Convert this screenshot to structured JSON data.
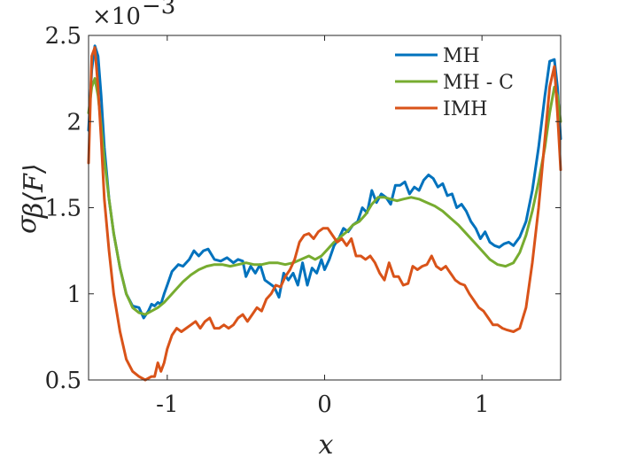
{
  "chart_data": {
    "type": "line",
    "xlabel": "x",
    "ylabel": "σ",
    "ylabel_sub": "β⟨F⟩",
    "y_multiplier_base": "×10",
    "y_multiplier_exp": "−3",
    "xlim": [
      -1.5,
      1.5
    ],
    "ylim": [
      0.5,
      2.5
    ],
    "x_ticks": [
      -1,
      0,
      1
    ],
    "x_tick_labels": [
      "-1",
      "0",
      "1"
    ],
    "y_ticks": [
      0.5,
      1,
      1.5,
      2,
      2.5
    ],
    "y_tick_labels": [
      "0.5",
      "1",
      "1.5",
      "2",
      "2.5"
    ],
    "grid": false,
    "legend_position": "top-right",
    "series": [
      {
        "name": "MH",
        "color": "#0072BD",
        "x": [
          -1.5,
          -1.48,
          -1.46,
          -1.44,
          -1.42,
          -1.4,
          -1.37,
          -1.34,
          -1.3,
          -1.26,
          -1.22,
          -1.18,
          -1.15,
          -1.12,
          -1.1,
          -1.08,
          -1.06,
          -1.04,
          -1.02,
          -1.0,
          -0.97,
          -0.93,
          -0.9,
          -0.86,
          -0.83,
          -0.8,
          -0.77,
          -0.74,
          -0.7,
          -0.66,
          -0.62,
          -0.58,
          -0.55,
          -0.52,
          -0.5,
          -0.47,
          -0.44,
          -0.41,
          -0.38,
          -0.35,
          -0.32,
          -0.29,
          -0.26,
          -0.23,
          -0.2,
          -0.17,
          -0.14,
          -0.11,
          -0.08,
          -0.05,
          -0.02,
          0.0,
          0.03,
          0.06,
          0.09,
          0.12,
          0.15,
          0.18,
          0.21,
          0.24,
          0.27,
          0.3,
          0.33,
          0.36,
          0.39,
          0.42,
          0.45,
          0.48,
          0.51,
          0.54,
          0.57,
          0.6,
          0.63,
          0.66,
          0.69,
          0.72,
          0.75,
          0.78,
          0.81,
          0.84,
          0.87,
          0.9,
          0.93,
          0.96,
          0.99,
          1.02,
          1.05,
          1.08,
          1.11,
          1.14,
          1.17,
          1.2,
          1.24,
          1.28,
          1.32,
          1.36,
          1.4,
          1.43,
          1.46,
          1.48,
          1.5
        ],
        "values": [
          1.95,
          2.3,
          2.44,
          2.38,
          2.15,
          1.85,
          1.55,
          1.35,
          1.15,
          1.0,
          0.93,
          0.92,
          0.86,
          0.9,
          0.94,
          0.93,
          0.95,
          0.94,
          1.0,
          1.05,
          1.13,
          1.17,
          1.16,
          1.2,
          1.25,
          1.22,
          1.25,
          1.26,
          1.2,
          1.19,
          1.21,
          1.18,
          1.2,
          1.19,
          1.1,
          1.16,
          1.12,
          1.17,
          1.08,
          1.06,
          1.04,
          0.98,
          1.12,
          1.08,
          1.12,
          1.05,
          1.18,
          1.05,
          1.15,
          1.12,
          1.2,
          1.14,
          1.2,
          1.28,
          1.32,
          1.38,
          1.36,
          1.4,
          1.42,
          1.5,
          1.47,
          1.6,
          1.53,
          1.58,
          1.56,
          1.52,
          1.63,
          1.63,
          1.65,
          1.58,
          1.62,
          1.6,
          1.66,
          1.69,
          1.67,
          1.62,
          1.64,
          1.57,
          1.58,
          1.5,
          1.52,
          1.48,
          1.42,
          1.38,
          1.32,
          1.36,
          1.3,
          1.28,
          1.27,
          1.29,
          1.3,
          1.28,
          1.33,
          1.42,
          1.6,
          1.85,
          2.15,
          2.35,
          2.36,
          2.2,
          1.9
        ]
      },
      {
        "name": "MH - C",
        "color": "#77AC30",
        "x": [
          -1.5,
          -1.48,
          -1.46,
          -1.44,
          -1.42,
          -1.4,
          -1.37,
          -1.34,
          -1.3,
          -1.26,
          -1.22,
          -1.18,
          -1.14,
          -1.1,
          -1.06,
          -1.02,
          -0.98,
          -0.94,
          -0.9,
          -0.85,
          -0.8,
          -0.75,
          -0.7,
          -0.65,
          -0.6,
          -0.55,
          -0.5,
          -0.45,
          -0.4,
          -0.35,
          -0.3,
          -0.25,
          -0.2,
          -0.15,
          -0.1,
          -0.06,
          -0.02,
          0.02,
          0.06,
          0.1,
          0.14,
          0.18,
          0.22,
          0.26,
          0.3,
          0.34,
          0.38,
          0.42,
          0.46,
          0.5,
          0.55,
          0.6,
          0.65,
          0.7,
          0.75,
          0.8,
          0.85,
          0.9,
          0.95,
          1.0,
          1.05,
          1.1,
          1.15,
          1.2,
          1.24,
          1.28,
          1.32,
          1.36,
          1.4,
          1.43,
          1.46,
          1.48,
          1.5
        ],
        "values": [
          2.05,
          2.2,
          2.25,
          2.15,
          1.98,
          1.78,
          1.55,
          1.35,
          1.15,
          1.0,
          0.92,
          0.89,
          0.88,
          0.9,
          0.92,
          0.95,
          0.99,
          1.03,
          1.07,
          1.11,
          1.14,
          1.16,
          1.17,
          1.17,
          1.16,
          1.17,
          1.18,
          1.17,
          1.17,
          1.18,
          1.18,
          1.17,
          1.18,
          1.2,
          1.22,
          1.2,
          1.22,
          1.26,
          1.3,
          1.33,
          1.36,
          1.4,
          1.42,
          1.46,
          1.52,
          1.56,
          1.56,
          1.55,
          1.54,
          1.55,
          1.56,
          1.55,
          1.53,
          1.51,
          1.48,
          1.44,
          1.4,
          1.35,
          1.3,
          1.25,
          1.2,
          1.17,
          1.16,
          1.18,
          1.24,
          1.34,
          1.48,
          1.65,
          1.85,
          2.05,
          2.2,
          2.15,
          2.0
        ]
      },
      {
        "name": "IMH",
        "color": "#D95319",
        "x": [
          -1.5,
          -1.48,
          -1.46,
          -1.44,
          -1.42,
          -1.4,
          -1.37,
          -1.34,
          -1.3,
          -1.26,
          -1.22,
          -1.18,
          -1.14,
          -1.1,
          -1.08,
          -1.06,
          -1.04,
          -1.02,
          -1.0,
          -0.97,
          -0.94,
          -0.91,
          -0.88,
          -0.85,
          -0.82,
          -0.79,
          -0.76,
          -0.73,
          -0.7,
          -0.67,
          -0.64,
          -0.61,
          -0.58,
          -0.55,
          -0.52,
          -0.49,
          -0.46,
          -0.43,
          -0.4,
          -0.37,
          -0.34,
          -0.31,
          -0.28,
          -0.25,
          -0.22,
          -0.19,
          -0.16,
          -0.13,
          -0.1,
          -0.07,
          -0.04,
          -0.01,
          0.02,
          0.05,
          0.08,
          0.11,
          0.14,
          0.17,
          0.2,
          0.23,
          0.26,
          0.29,
          0.32,
          0.35,
          0.38,
          0.41,
          0.44,
          0.47,
          0.5,
          0.53,
          0.56,
          0.59,
          0.62,
          0.65,
          0.68,
          0.71,
          0.74,
          0.77,
          0.8,
          0.83,
          0.86,
          0.89,
          0.92,
          0.95,
          0.98,
          1.01,
          1.04,
          1.07,
          1.1,
          1.13,
          1.16,
          1.2,
          1.24,
          1.28,
          1.32,
          1.36,
          1.4,
          1.43,
          1.46,
          1.48,
          1.5
        ],
        "values": [
          1.76,
          2.38,
          2.43,
          2.2,
          1.9,
          1.55,
          1.25,
          1.0,
          0.78,
          0.62,
          0.55,
          0.52,
          0.5,
          0.52,
          0.52,
          0.6,
          0.55,
          0.6,
          0.68,
          0.76,
          0.8,
          0.78,
          0.8,
          0.82,
          0.84,
          0.8,
          0.84,
          0.86,
          0.8,
          0.8,
          0.82,
          0.8,
          0.82,
          0.86,
          0.88,
          0.84,
          0.88,
          0.92,
          0.9,
          0.97,
          1.0,
          1.05,
          1.04,
          1.1,
          1.14,
          1.2,
          1.3,
          1.34,
          1.35,
          1.32,
          1.36,
          1.38,
          1.38,
          1.34,
          1.3,
          1.32,
          1.28,
          1.32,
          1.22,
          1.22,
          1.2,
          1.22,
          1.18,
          1.12,
          1.08,
          1.18,
          1.1,
          1.1,
          1.05,
          1.06,
          1.16,
          1.14,
          1.16,
          1.17,
          1.22,
          1.16,
          1.14,
          1.16,
          1.12,
          1.08,
          1.06,
          1.05,
          1.0,
          0.96,
          0.92,
          0.9,
          0.86,
          0.82,
          0.82,
          0.8,
          0.79,
          0.78,
          0.8,
          0.92,
          1.18,
          1.5,
          1.9,
          2.2,
          2.32,
          2.05,
          1.72
        ]
      }
    ]
  }
}
